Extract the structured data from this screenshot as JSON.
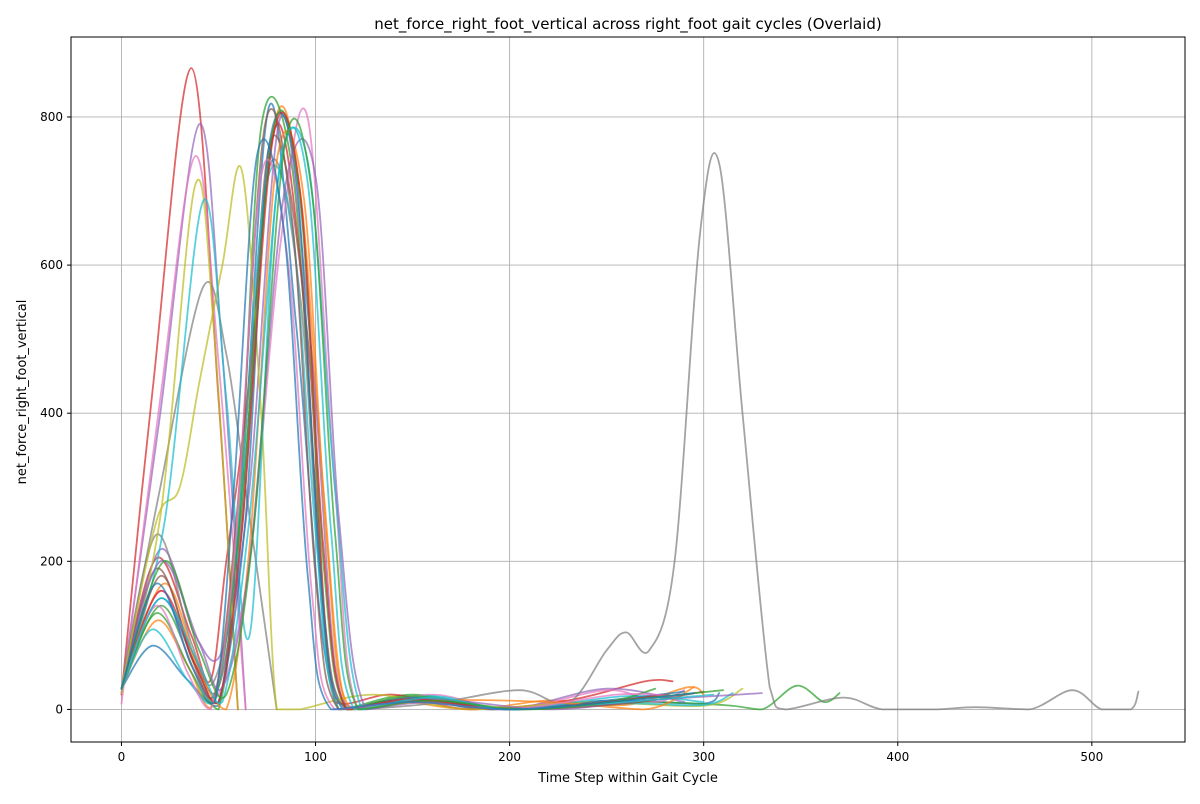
{
  "chart_data": {
    "type": "line",
    "title": "net_force_right_foot_vertical across right_foot gait cycles (Overlaid)",
    "xlabel": "Time Step within Gait Cycle",
    "ylabel": "net_force_right_foot_vertical",
    "xlim": [
      -26,
      548
    ],
    "ylim": [
      -44,
      908
    ],
    "x_ticks": [
      0,
      100,
      200,
      300,
      400,
      500
    ],
    "y_ticks": [
      0,
      200,
      400,
      600,
      800
    ],
    "grid": true,
    "legend": "none",
    "series": [
      {
        "color": "#1f77b4",
        "x": [
          0,
          16,
          34,
          50,
          62,
          76,
          90,
          104,
          118,
          150,
          190,
          250,
          300,
          308
        ],
        "y": [
          28,
          86,
          40,
          5,
          300,
          814,
          520,
          90,
          0,
          14,
          0,
          12,
          8,
          22
        ]
      },
      {
        "color": "#ff7f0e",
        "x": [
          0,
          18,
          34,
          46,
          58,
          78,
          92,
          104,
          116,
          140,
          180,
          220,
          260,
          292,
          300
        ],
        "y": [
          28,
          120,
          60,
          2,
          200,
          780,
          700,
          300,
          0,
          12,
          0,
          12,
          6,
          30,
          20
        ]
      },
      {
        "color": "#2ca02c",
        "x": [
          0,
          20,
          38,
          50,
          60,
          72,
          88,
          100,
          112,
          150,
          200,
          260,
          310,
          330,
          348,
          362,
          370
        ],
        "y": [
          28,
          140,
          50,
          0,
          220,
          786,
          730,
          300,
          0,
          20,
          0,
          10,
          6,
          0,
          32,
          10,
          22
        ]
      },
      {
        "color": "#d62728",
        "x": [
          0,
          18,
          36,
          46,
          54,
          64,
          80,
          96,
          110,
          140,
          180,
          230,
          270,
          284
        ],
        "y": [
          28,
          204,
          100,
          40,
          200,
          400,
          790,
          500,
          10,
          20,
          0,
          12,
          38,
          38
        ]
      },
      {
        "color": "#d62728",
        "x": [
          0,
          16,
          36,
          50,
          60
        ],
        "y": [
          20,
          430,
          866,
          420,
          0
        ]
      },
      {
        "color": "#9467bd",
        "x": [
          0,
          20,
          40,
          52,
          64
        ],
        "y": [
          22,
          400,
          790,
          480,
          0
        ]
      },
      {
        "color": "#9467bd",
        "x": [
          0,
          20,
          38,
          52,
          66,
          82,
          98,
          110,
          122,
          160,
          200,
          250,
          290
        ],
        "y": [
          28,
          216,
          100,
          80,
          300,
          800,
          480,
          60,
          0,
          10,
          0,
          28,
          10
        ]
      },
      {
        "color": "#8c564b",
        "x": [
          0,
          18,
          36,
          50,
          62,
          76,
          92,
          104,
          116,
          150,
          190,
          240,
          282
        ],
        "y": [
          28,
          190,
          80,
          30,
          260,
          760,
          600,
          140,
          0,
          15,
          0,
          8,
          20
        ]
      },
      {
        "color": "#e377c2",
        "x": [
          0,
          20,
          38,
          50,
          64
        ],
        "y": [
          8,
          420,
          747,
          470,
          0
        ]
      },
      {
        "color": "#e377c2",
        "x": [
          0,
          20,
          36,
          50,
          66,
          82,
          96,
          110,
          122,
          160,
          200,
          250,
          275,
          290
        ],
        "y": [
          28,
          160,
          60,
          20,
          200,
          630,
          798,
          300,
          0,
          20,
          0,
          26,
          10,
          26
        ]
      },
      {
        "color": "#7f7f7f",
        "x": [
          0,
          20,
          42,
          54,
          66,
          80
        ],
        "y": [
          28,
          300,
          570,
          480,
          260,
          0
        ]
      },
      {
        "color": "#7f7f7f",
        "x": [
          0,
          18,
          36,
          48,
          62,
          76,
          92,
          104,
          116,
          160,
          205,
          230,
          250,
          260,
          272,
          285,
          298,
          308,
          320,
          334,
          342,
          372,
          392,
          420,
          440,
          468,
          490,
          505,
          520,
          524
        ],
        "y": [
          28,
          236,
          90,
          40,
          240,
          730,
          560,
          120,
          0,
          8,
          26,
          8,
          80,
          104,
          80,
          200,
          640,
          737,
          400,
          30,
          0,
          16,
          0,
          0,
          3,
          0,
          26,
          0,
          0,
          24
        ]
      },
      {
        "color": "#bcbd22",
        "x": [
          0,
          20,
          38,
          48,
          60
        ],
        "y": [
          22,
          260,
          708,
          500,
          0
        ]
      },
      {
        "color": "#bcbd22",
        "x": [
          0,
          18,
          30,
          40,
          52,
          62,
          72,
          80,
          92,
          130,
          180,
          240,
          300,
          320
        ],
        "y": [
          28,
          254,
          300,
          440,
          600,
          728,
          400,
          0,
          0,
          20,
          0,
          10,
          5,
          28
        ]
      },
      {
        "color": "#17becf",
        "x": [
          0,
          22,
          42,
          54,
          66,
          80,
          96,
          110,
          124,
          160,
          200,
          260,
          300,
          315
        ],
        "y": [
          28,
          250,
          686,
          420,
          100,
          700,
          740,
          300,
          0,
          18,
          0,
          8,
          6,
          22
        ]
      },
      {
        "color": "#17becf",
        "x": [
          0,
          16,
          34,
          48,
          60,
          74,
          88,
          100,
          112,
          150,
          200,
          260,
          300
        ],
        "y": [
          28,
          108,
          40,
          10,
          240,
          700,
          650,
          240,
          0,
          14,
          0,
          18,
          10
        ]
      },
      {
        "color": "#1f77b4",
        "x": [
          0,
          20,
          38,
          50,
          64,
          76,
          90,
          102,
          114,
          150,
          200,
          250,
          290
        ],
        "y": [
          28,
          150,
          60,
          10,
          260,
          760,
          720,
          200,
          0,
          16,
          0,
          12,
          24
        ]
      },
      {
        "color": "#ff7f0e",
        "x": [
          0,
          22,
          40,
          54,
          66,
          80,
          94,
          106,
          118,
          160,
          220,
          270,
          295
        ],
        "y": [
          28,
          170,
          50,
          0,
          220,
          740,
          690,
          220,
          0,
          12,
          10,
          0,
          30
        ]
      },
      {
        "color": "#2ca02c",
        "x": [
          0,
          18,
          36,
          48,
          62,
          78,
          92,
          104,
          116,
          150,
          200,
          250,
          275
        ],
        "y": [
          28,
          130,
          50,
          10,
          280,
          780,
          690,
          200,
          0,
          18,
          0,
          10,
          28
        ]
      },
      {
        "color": "#9467bd",
        "x": [
          0,
          20,
          40,
          52,
          66,
          84,
          100,
          112,
          126,
          160,
          220,
          270,
          330
        ],
        "y": [
          28,
          200,
          90,
          30,
          200,
          700,
          720,
          260,
          0,
          14,
          0,
          12,
          22
        ]
      },
      {
        "color": "#8c564b",
        "x": [
          0,
          20,
          36,
          48,
          60,
          74,
          88,
          100,
          112,
          150,
          200,
          260,
          300
        ],
        "y": [
          28,
          180,
          70,
          20,
          280,
          790,
          660,
          180,
          0,
          12,
          0,
          8,
          24
        ]
      },
      {
        "color": "#d62728",
        "x": [
          0,
          20,
          38,
          50,
          62,
          78,
          92,
          104,
          116,
          150,
          200,
          250,
          280
        ],
        "y": [
          28,
          160,
          60,
          10,
          240,
          770,
          700,
          220,
          0,
          14,
          0,
          10,
          20
        ]
      },
      {
        "color": "#e377c2",
        "x": [
          0,
          18,
          34,
          46,
          58,
          72,
          86,
          98,
          110,
          150,
          200,
          255,
          285
        ],
        "y": [
          28,
          140,
          50,
          0,
          200,
          720,
          600,
          160,
          0,
          10,
          0,
          20,
          18
        ]
      },
      {
        "color": "#17becf",
        "x": [
          0,
          20,
          40,
          52,
          66,
          82,
          96,
          108,
          120,
          160,
          200,
          260,
          305
        ],
        "y": [
          28,
          150,
          60,
          10,
          260,
          740,
          710,
          240,
          0,
          16,
          0,
          10,
          20
        ]
      },
      {
        "color": "#2ca02c",
        "x": [
          0,
          22,
          40,
          54,
          68,
          84,
          98,
          110,
          122,
          160,
          210,
          265,
          310
        ],
        "y": [
          28,
          200,
          80,
          20,
          240,
          760,
          700,
          240,
          0,
          12,
          0,
          14,
          26
        ]
      },
      {
        "color": "#1f77b4",
        "x": [
          0,
          18,
          36,
          48,
          58,
          70,
          84,
          96,
          108,
          150,
          200,
          260,
          295
        ],
        "y": [
          28,
          170,
          60,
          10,
          300,
          750,
          640,
          180,
          0,
          10,
          0,
          12,
          22
        ]
      }
    ]
  }
}
